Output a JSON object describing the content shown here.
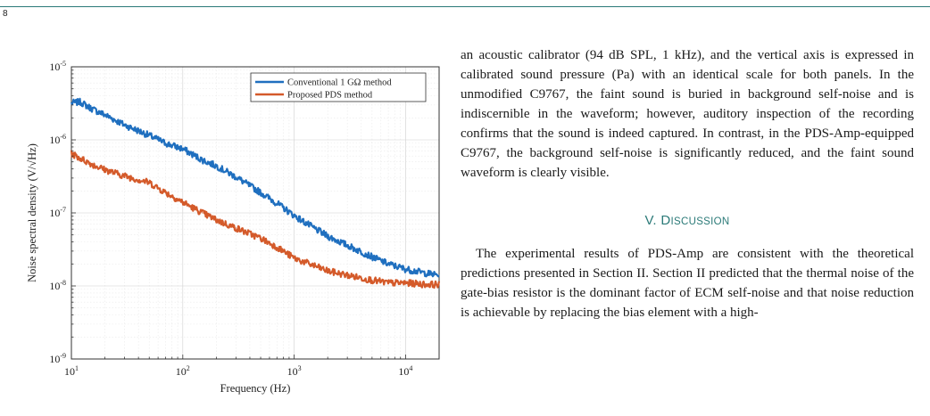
{
  "page": {
    "number": "8"
  },
  "figure": {
    "chart_data": {
      "type": "line",
      "xlabel": "Frequency (Hz)",
      "ylabel": "Noise spectral density (V/√Hz)",
      "x_scale": "log",
      "y_scale": "log",
      "xlim": [
        10,
        20000
      ],
      "ylim": [
        1e-09,
        1e-05
      ],
      "grid": true,
      "legend_position": "top-right",
      "x_ticks": [
        {
          "value": 10,
          "base": "10",
          "exp": "1"
        },
        {
          "value": 100,
          "base": "10",
          "exp": "2"
        },
        {
          "value": 1000,
          "base": "10",
          "exp": "3"
        },
        {
          "value": 10000,
          "base": "10",
          "exp": "4"
        }
      ],
      "y_ticks": [
        {
          "value": 1e-05,
          "base": "10",
          "exp": "-5"
        },
        {
          "value": 1e-06,
          "base": "10",
          "exp": "-6"
        },
        {
          "value": 1e-07,
          "base": "10",
          "exp": "-7"
        },
        {
          "value": 1e-08,
          "base": "10",
          "exp": "-8"
        },
        {
          "value": 1e-09,
          "base": "10",
          "exp": "-9"
        }
      ],
      "series": [
        {
          "name": "Conventional 1 GΩ method",
          "color": "#1f6fbf",
          "x": [
            10,
            12,
            15,
            20,
            30,
            50,
            70,
            100,
            150,
            200,
            300,
            500,
            700,
            1000,
            1500,
            2000,
            3000,
            5000,
            7000,
            10000,
            15000,
            20000
          ],
          "y": [
            3.2e-06,
            3.3e-06,
            2.7e-06,
            2.2e-06,
            1.6e-06,
            1.15e-06,
            9e-07,
            7.5e-07,
            5.3e-07,
            4.4e-07,
            3.1e-07,
            1.9e-07,
            1.35e-07,
            9.2e-08,
            6.2e-08,
            4.8e-08,
            3.6e-08,
            2.5e-08,
            2e-08,
            1.7e-08,
            1.5e-08,
            1.4e-08
          ]
        },
        {
          "name": "Proposed PDS method",
          "color": "#d45a2a",
          "x": [
            10,
            12,
            15,
            20,
            30,
            50,
            70,
            100,
            150,
            200,
            300,
            500,
            700,
            1000,
            1500,
            2000,
            3000,
            5000,
            7000,
            10000,
            15000,
            20000
          ],
          "y": [
            6.5e-07,
            5.6e-07,
            4.7e-07,
            3.9e-07,
            3.2e-07,
            2.6e-07,
            1.9e-07,
            1.4e-07,
            1e-07,
            8e-08,
            6.2e-08,
            4.5e-08,
            3.4e-08,
            2.4e-08,
            1.9e-08,
            1.6e-08,
            1.4e-08,
            1.2e-08,
            1.1e-08,
            1.1e-08,
            1.05e-08,
            1.05e-08
          ]
        }
      ]
    }
  },
  "text": {
    "para1": "an acoustic calibrator (94 dB SPL, 1 kHz), and the vertical axis is expressed in calibrated sound pressure (Pa) with an identical scale for both panels. In the unmodified C9767, the faint sound is buried in background self-noise and is indiscernible in the waveform; however, auditory inspection of the recording confirms that the sound is indeed captured. In contrast, in the PDS-Amp-equipped C9767, the background self-noise is significantly reduced, and the faint sound waveform is clearly visible.",
    "section_number": "V.",
    "section_title_initial": "D",
    "section_title_rest": "ISCUSSION",
    "para2": "The experimental results of PDS-Amp are consistent with the theoretical predictions presented in Section II. Section II predicted that the thermal noise of the gate-bias resistor is the dominant factor of ECM self-noise and that noise reduction is achievable by replacing the bias element with a high-"
  }
}
